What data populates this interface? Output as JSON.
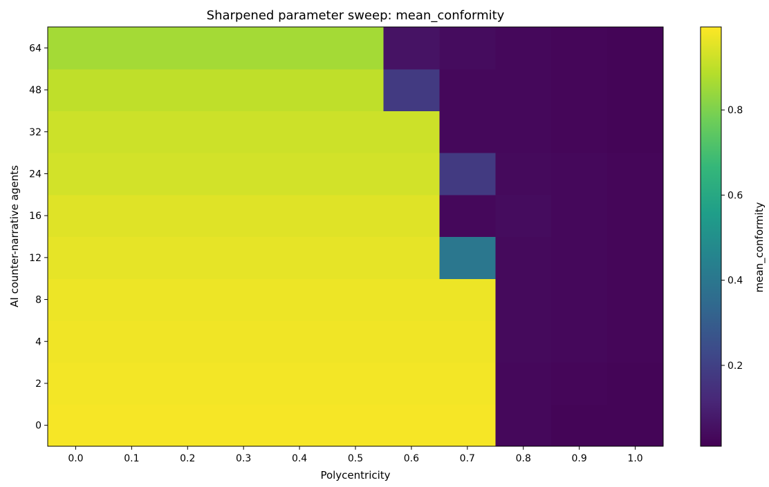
{
  "chart_data": {
    "type": "heatmap",
    "title": "Sharpened parameter sweep: mean_conformity",
    "xlabel": "Polycentricity",
    "ylabel": "AI counter-narrative agents",
    "x": [
      0.0,
      0.1,
      0.2,
      0.3,
      0.4,
      0.5,
      0.6,
      0.7,
      0.8,
      0.9,
      1.0
    ],
    "x_tick_labels": [
      "0.0",
      "0.1",
      "0.2",
      "0.3",
      "0.4",
      "0.5",
      "0.6",
      "0.7",
      "0.8",
      "0.9",
      "1.0"
    ],
    "y": [
      0,
      2,
      4,
      8,
      12,
      16,
      24,
      32,
      48,
      64
    ],
    "y_tick_labels": [
      "0",
      "2",
      "4",
      "8",
      "12",
      "16",
      "24",
      "32",
      "48",
      "64"
    ],
    "values": [
      [
        0.985,
        0.985,
        0.985,
        0.985,
        0.985,
        0.985,
        0.985,
        0.985,
        0.03,
        0.02,
        0.02
      ],
      [
        0.98,
        0.98,
        0.98,
        0.98,
        0.98,
        0.98,
        0.98,
        0.98,
        0.03,
        0.025,
        0.02
      ],
      [
        0.975,
        0.975,
        0.975,
        0.975,
        0.975,
        0.975,
        0.975,
        0.975,
        0.035,
        0.03,
        0.025
      ],
      [
        0.97,
        0.97,
        0.97,
        0.97,
        0.97,
        0.97,
        0.97,
        0.97,
        0.035,
        0.03,
        0.025
      ],
      [
        0.96,
        0.96,
        0.96,
        0.96,
        0.96,
        0.96,
        0.96,
        0.4,
        0.035,
        0.03,
        0.025
      ],
      [
        0.95,
        0.95,
        0.95,
        0.95,
        0.95,
        0.95,
        0.95,
        0.03,
        0.04,
        0.03,
        0.025
      ],
      [
        0.93,
        0.93,
        0.93,
        0.93,
        0.93,
        0.93,
        0.93,
        0.18,
        0.035,
        0.03,
        0.025
      ],
      [
        0.92,
        0.92,
        0.92,
        0.92,
        0.92,
        0.92,
        0.92,
        0.03,
        0.03,
        0.025,
        0.02
      ],
      [
        0.9,
        0.9,
        0.9,
        0.9,
        0.9,
        0.9,
        0.18,
        0.03,
        0.03,
        0.025,
        0.02
      ],
      [
        0.86,
        0.86,
        0.86,
        0.86,
        0.86,
        0.86,
        0.06,
        0.04,
        0.03,
        0.025,
        0.02
      ]
    ],
    "vmin": 0.01,
    "vmax": 0.995,
    "colormap": "viridis",
    "colorbar": {
      "label": "mean_conformity",
      "ticks": [
        0.2,
        0.4,
        0.6,
        0.8
      ],
      "tick_labels": [
        "0.2",
        "0.4",
        "0.6",
        "0.8"
      ]
    },
    "grid": false
  }
}
